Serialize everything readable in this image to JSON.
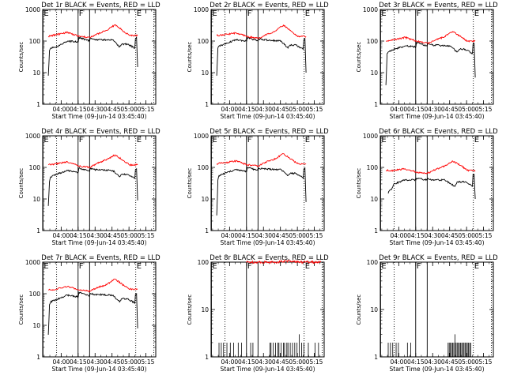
{
  "chart_data": {
    "layout": "3x3 grid",
    "common": {
      "ylabel": "Counts/sec",
      "xlabel": "Start Time (09-Jun-14 03:45:40)",
      "x_ticks": [
        "04:00",
        "04:15",
        "04:30",
        "04:45",
        "05:00",
        "05:15"
      ],
      "x_range_min": [
        -2,
        98
      ],
      "ylog": true,
      "y_ticks": [
        "1",
        "10",
        "100",
        "1000"
      ],
      "series_names": [
        "Events",
        "LLD"
      ],
      "series_colors": {
        "Events": "#000000",
        "LLD": "#ff0000"
      },
      "markers": [
        {
          "label": "E",
          "min": -1.7,
          "style": "solid"
        },
        {
          "label": "F",
          "min": 29.3,
          "style": "solid"
        },
        {
          "label": "",
          "min": 39.5,
          "style": "solid"
        },
        {
          "label": "E",
          "min": 80.3,
          "style": "dotted"
        },
        {
          "label": "",
          "min": 10.3,
          "style": "dotted"
        },
        {
          "label": "",
          "min": 96.3,
          "style": "dotted"
        }
      ]
    },
    "panels": [
      {
        "title": "Det 1r BLACK = Events, RED = LLD",
        "type": "line",
        "ylim": [
          1,
          1000
        ],
        "series": [
          {
            "name": "Events",
            "x": [
              3,
              4,
              5,
              10,
              20,
              29.5,
              30,
              39.5,
              40,
              44,
              60,
              66,
              68,
              73,
              79.5,
              80,
              81,
              82
            ],
            "y": [
              8,
              50,
              60,
              65,
              100,
              95,
              130,
              100,
              120,
              110,
              110,
              65,
              80,
              80,
              60,
              120,
              130,
              15
            ]
          },
          {
            "name": "LLD",
            "x": [
              3,
              10,
              20,
              30,
              40,
              45,
              55,
              62,
              70,
              75,
              82
            ],
            "y": [
              140,
              160,
              190,
              140,
              130,
              160,
              220,
              330,
              200,
              150,
              150
            ]
          }
        ]
      },
      {
        "title": "Det 2r BLACK = Events, RED = LLD",
        "type": "line",
        "ylim": [
          1,
          1000
        ],
        "series": [
          {
            "name": "Events",
            "x": [
              3,
              4,
              5,
              10,
              20,
              29.5,
              30,
              39.5,
              40,
              44,
              60,
              66,
              68,
              73,
              79.5,
              80,
              81,
              82
            ],
            "y": [
              8,
              60,
              70,
              80,
              110,
              100,
              130,
              100,
              120,
              110,
              100,
              60,
              75,
              75,
              55,
              110,
              120,
              10
            ]
          },
          {
            "name": "LLD",
            "x": [
              3,
              10,
              20,
              30,
              40,
              45,
              55,
              62,
              70,
              75,
              82
            ],
            "y": [
              150,
              160,
              180,
              140,
              120,
              150,
              210,
              320,
              190,
              140,
              140
            ]
          }
        ]
      },
      {
        "title": "Det 3r BLACK = Events, RED = LLD",
        "type": "line",
        "ylim": [
          1,
          1000
        ],
        "series": [
          {
            "name": "Events",
            "x": [
              3,
              4,
              5,
              10,
              20,
              29.5,
              30,
              39.5,
              40,
              44,
              60,
              66,
              68,
              73,
              79.5,
              80,
              81,
              82
            ],
            "y": [
              4,
              40,
              45,
              55,
              70,
              65,
              90,
              70,
              85,
              75,
              70,
              45,
              55,
              55,
              40,
              80,
              85,
              7
            ]
          },
          {
            "name": "LLD",
            "x": [
              3,
              10,
              20,
              30,
              40,
              45,
              55,
              62,
              70,
              75,
              82
            ],
            "y": [
              100,
              110,
              130,
              100,
              85,
              100,
              140,
              200,
              130,
              100,
              100
            ]
          }
        ]
      },
      {
        "title": "Det 4r BLACK = Events, RED = LLD",
        "type": "line",
        "ylim": [
          1,
          1000
        ],
        "series": [
          {
            "name": "Events",
            "x": [
              3,
              4,
              5,
              10,
              20,
              29.5,
              30,
              39.5,
              40,
              44,
              60,
              66,
              68,
              73,
              79.5,
              80,
              81,
              82
            ],
            "y": [
              6,
              35,
              50,
              60,
              80,
              70,
              95,
              75,
              90,
              85,
              80,
              50,
              60,
              60,
              45,
              85,
              90,
              9
            ]
          },
          {
            "name": "LLD",
            "x": [
              3,
              10,
              20,
              30,
              40,
              45,
              55,
              62,
              70,
              75,
              82
            ],
            "y": [
              120,
              130,
              150,
              110,
              100,
              130,
              180,
              250,
              160,
              120,
              120
            ]
          }
        ]
      },
      {
        "title": "Det 5r BLACK = Events, RED = LLD",
        "type": "line",
        "ylim": [
          1,
          1000
        ],
        "series": [
          {
            "name": "Events",
            "x": [
              3,
              4,
              5,
              10,
              20,
              29.5,
              30,
              39.5,
              40,
              44,
              60,
              66,
              68,
              73,
              79.5,
              80,
              81,
              82
            ],
            "y": [
              3,
              40,
              55,
              65,
              85,
              75,
              100,
              80,
              95,
              90,
              85,
              55,
              65,
              65,
              45,
              90,
              95,
              8
            ]
          },
          {
            "name": "LLD",
            "x": [
              3,
              10,
              20,
              30,
              40,
              45,
              55,
              62,
              70,
              75,
              82
            ],
            "y": [
              130,
              140,
              160,
              120,
              110,
              140,
              190,
              270,
              170,
              130,
              130
            ]
          }
        ]
      },
      {
        "title": "Det 6r BLACK = Events, RED = LLD",
        "type": "line",
        "ylim": [
          1,
          1000
        ],
        "series": [
          {
            "name": "Events",
            "x": [
              5,
              6,
              8,
              10,
              20,
              29.5,
              30,
              39.5,
              40,
              44,
              55,
              64,
              66,
              73,
              79.5,
              80,
              81,
              82
            ],
            "y": [
              15,
              18,
              20,
              30,
              40,
              40,
              45,
              40,
              45,
              40,
              40,
              25,
              35,
              35,
              25,
              60,
              60,
              10
            ]
          },
          {
            "name": "LLD",
            "x": [
              3,
              10,
              20,
              30,
              40,
              45,
              55,
              62,
              70,
              75,
              82
            ],
            "y": [
              80,
              80,
              90,
              70,
              65,
              80,
              110,
              160,
              110,
              80,
              80
            ]
          }
        ]
      },
      {
        "title": "Det 7r BLACK = Events, RED = LLD",
        "type": "line",
        "ylim": [
          1,
          1000
        ],
        "series": [
          {
            "name": "Events",
            "x": [
              3,
              4,
              5,
              10,
              20,
              29.5,
              30,
              39.5,
              40,
              44,
              60,
              66,
              68,
              73,
              79.5,
              80,
              81,
              82
            ],
            "y": [
              5,
              45,
              55,
              65,
              90,
              80,
              110,
              85,
              100,
              95,
              90,
              55,
              70,
              70,
              50,
              95,
              100,
              8
            ]
          },
          {
            "name": "LLD",
            "x": [
              3,
              10,
              20,
              30,
              40,
              45,
              55,
              62,
              70,
              75,
              82
            ],
            "y": [
              130,
              140,
              170,
              130,
              120,
              150,
              200,
              290,
              180,
              140,
              140
            ]
          }
        ]
      },
      {
        "title": "Det 8r BLACK = Events, RED = LLD",
        "type": "line",
        "ylim": [
          1,
          100
        ],
        "series": [
          {
            "name": "Events",
            "spikes": true,
            "x": [
              5,
              7,
              9,
              12,
              15,
              18,
              22,
              25,
              33,
              35,
              50,
              51,
              53,
              55,
              57,
              58,
              60,
              62,
              63,
              65,
              66,
              68,
              70,
              72,
              74,
              76,
              78,
              80,
              84,
              90,
              93
            ],
            "y": [
              2,
              2,
              2,
              2,
              2,
              2,
              2,
              2,
              2,
              2,
              2,
              2,
              2,
              2,
              2,
              2,
              2,
              2,
              2,
              2,
              2,
              2,
              2,
              2,
              2,
              3,
              2,
              2,
              2,
              2,
              2
            ]
          },
          {
            "name": "LLD",
            "x": [
              29,
              40,
              55,
              65,
              75,
              85,
              95
            ],
            "y": [
              100,
              100,
              100,
              105,
              100,
              100,
              100
            ]
          }
        ]
      },
      {
        "title": "Det 9r BLACK = Events, RED = LLD",
        "type": "line",
        "ylim": [
          1,
          100
        ],
        "series": [
          {
            "name": "Events",
            "spikes": true,
            "x": [
              5,
              7,
              9,
              12,
              14,
              22,
              25,
              58,
              59,
              60,
              61,
              62,
              63,
              64,
              65,
              66,
              67,
              68,
              69,
              70,
              71,
              72,
              73,
              74,
              75,
              76,
              77,
              78
            ],
            "y": [
              2,
              2,
              2,
              2,
              2,
              2,
              2,
              2,
              2,
              2,
              2,
              2,
              2,
              3,
              2,
              2,
              2,
              2,
              2,
              2,
              2,
              2,
              2,
              2,
              2,
              2,
              2,
              2
            ]
          },
          {
            "name": "LLD",
            "x": [],
            "y": []
          }
        ]
      }
    ]
  }
}
